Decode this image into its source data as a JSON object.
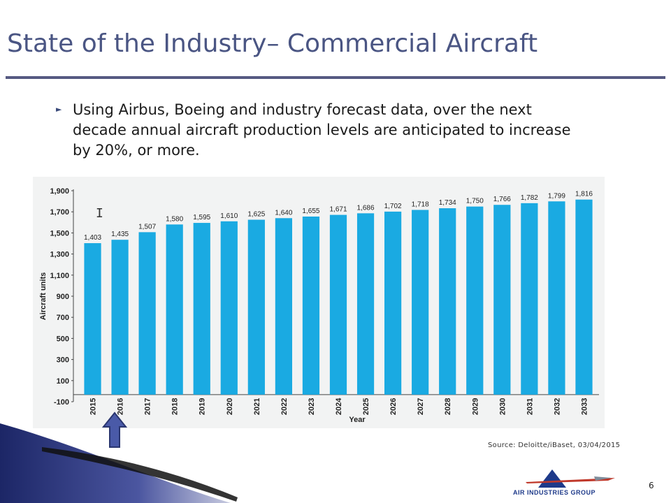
{
  "slide": {
    "title": "State of the Industry– Commercial Aircraft",
    "bullet": "Using Airbus, Boeing and industry forecast data, over the next decade annual aircraft production levels are anticipated to increase by 20%, or more.",
    "source": "Source: Deloitte/iBaset, 03/04/2015",
    "page_number": "6",
    "logo_text": "AIR INDUSTRIES GROUP"
  },
  "colors": {
    "title": "#4a5583",
    "rule": "#565a82",
    "bar": "#1aaae2",
    "chart_bg": "#f2f3f3",
    "arrow": "#4a5aa8"
  },
  "chart_data": {
    "type": "bar",
    "title": "",
    "xlabel": "Year",
    "ylabel": "Aircraft units",
    "categories": [
      "2015",
      "2016",
      "2017",
      "2018",
      "2019",
      "2020",
      "2021",
      "2022",
      "2023",
      "2024",
      "2025",
      "2026",
      "2027",
      "2028",
      "2029",
      "2030",
      "2031",
      "2032",
      "2033"
    ],
    "values": [
      1403,
      1435,
      1507,
      1580,
      1595,
      1610,
      1625,
      1640,
      1655,
      1671,
      1686,
      1702,
      1718,
      1734,
      1750,
      1766,
      1782,
      1799,
      1816
    ],
    "value_labels": [
      "1,403",
      "1,435",
      "1,507",
      "1,580",
      "1,595",
      "1,610",
      "1,625",
      "1,640",
      "1,655",
      "1,671",
      "1,686",
      "1,702",
      "1,718",
      "1,734",
      "1,750",
      "1,766",
      "1,782",
      "1,799",
      "1,816"
    ],
    "yticks": [
      -100,
      100,
      300,
      500,
      700,
      900,
      1100,
      1300,
      1500,
      1700,
      1900
    ],
    "ytick_labels": [
      "-100",
      "100",
      "300",
      "500",
      "700",
      "900",
      "1,100",
      "1,300",
      "1,500",
      "1,700",
      "1,900"
    ],
    "ylim": [
      -100,
      1900
    ],
    "grid": false,
    "legend": "none"
  }
}
